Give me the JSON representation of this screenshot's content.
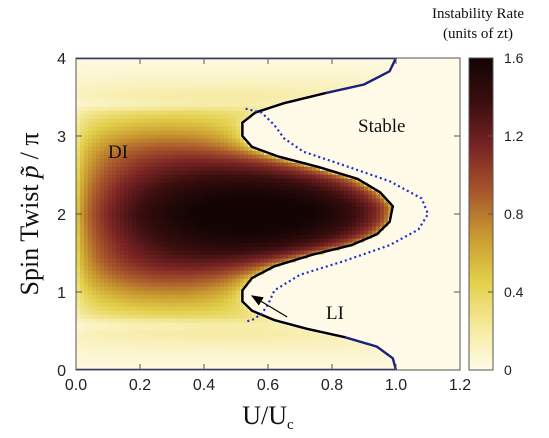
{
  "chart_data": {
    "type": "heatmap",
    "title": "",
    "xlabel": {
      "main": "U/U",
      "sub": "c"
    },
    "ylabel": {
      "main": "Spin Twist",
      "symbol": "p̃",
      "suffix": "/ π"
    },
    "xlim": [
      0.0,
      1.2
    ],
    "ylim": [
      0,
      4
    ],
    "xticks": [
      "0.0",
      "0.2",
      "0.4",
      "0.6",
      "0.8",
      "1.0",
      "1.2"
    ],
    "yticks": [
      "0",
      "1",
      "2",
      "3",
      "4"
    ],
    "colorbar": {
      "title_line1": "Instability Rate",
      "title_line2": "(units of zt)",
      "range": [
        0,
        1.6
      ],
      "ticks": [
        "0",
        "0.4",
        "0.8",
        "1.2",
        "1.6"
      ],
      "colors": [
        "#fffbe8",
        "#f5e99a",
        "#e2cf4a",
        "#c99a30",
        "#a8562c",
        "#7a2424",
        "#3a0e0e",
        "#140404"
      ]
    },
    "regions": {
      "di_label": "DI",
      "stable_label": "Stable",
      "li_label": "LI"
    },
    "boundaries": {
      "di_boundary_black": {
        "color": "#000000",
        "points": [
          [
            1.0,
            4.0
          ],
          [
            0.98,
            3.83
          ],
          [
            0.9,
            3.66
          ],
          [
            0.78,
            3.55
          ],
          [
            0.65,
            3.42
          ],
          [
            0.56,
            3.3
          ],
          [
            0.52,
            3.17
          ],
          [
            0.52,
            3.0
          ],
          [
            0.55,
            2.86
          ],
          [
            0.63,
            2.74
          ],
          [
            0.76,
            2.6
          ],
          [
            0.88,
            2.45
          ],
          [
            0.95,
            2.28
          ],
          [
            0.99,
            2.1
          ],
          [
            0.98,
            1.9
          ],
          [
            0.94,
            1.74
          ],
          [
            0.86,
            1.6
          ],
          [
            0.74,
            1.48
          ],
          [
            0.62,
            1.33
          ],
          [
            0.55,
            1.18
          ],
          [
            0.52,
            1.02
          ],
          [
            0.52,
            0.88
          ],
          [
            0.55,
            0.76
          ],
          [
            0.62,
            0.64
          ],
          [
            0.72,
            0.53
          ],
          [
            0.84,
            0.42
          ],
          [
            0.94,
            0.3
          ],
          [
            0.99,
            0.15
          ],
          [
            1.0,
            0.0
          ]
        ]
      },
      "li_boundary_blue": {
        "color": "#1a2fd0",
        "points": [
          [
            0.53,
            3.35
          ],
          [
            0.58,
            3.3
          ],
          [
            0.62,
            3.14
          ],
          [
            0.65,
            2.97
          ],
          [
            0.71,
            2.8
          ],
          [
            0.84,
            2.62
          ],
          [
            0.98,
            2.42
          ],
          [
            1.08,
            2.2
          ],
          [
            1.1,
            2.0
          ],
          [
            1.07,
            1.8
          ],
          [
            0.98,
            1.6
          ],
          [
            0.84,
            1.4
          ],
          [
            0.7,
            1.22
          ],
          [
            0.62,
            1.02
          ],
          [
            0.6,
            0.84
          ],
          [
            0.58,
            0.72
          ],
          [
            0.55,
            0.64
          ],
          [
            0.53,
            0.62
          ]
        ]
      },
      "outer_line_blue": {
        "color": "#1a2080",
        "points": [
          [
            0.0,
            4.0
          ],
          [
            1.0,
            4.0
          ],
          [
            0.98,
            3.83
          ],
          [
            0.9,
            3.66
          ],
          [
            0.78,
            3.55
          ],
          [
            0.65,
            3.42
          ],
          [
            0.56,
            3.3
          ],
          [
            0.52,
            3.17
          ],
          [
            0.52,
            3.0
          ],
          [
            0.55,
            2.86
          ],
          [
            0.63,
            2.74
          ],
          [
            0.76,
            2.6
          ],
          [
            0.88,
            2.45
          ],
          [
            0.95,
            2.28
          ],
          [
            0.99,
            2.1
          ],
          [
            0.98,
            1.9
          ],
          [
            0.94,
            1.74
          ],
          [
            0.86,
            1.6
          ],
          [
            0.74,
            1.48
          ],
          [
            0.62,
            1.33
          ],
          [
            0.55,
            1.18
          ],
          [
            0.52,
            1.02
          ],
          [
            0.52,
            0.88
          ],
          [
            0.55,
            0.76
          ],
          [
            0.62,
            0.64
          ],
          [
            0.72,
            0.53
          ],
          [
            0.84,
            0.42
          ],
          [
            0.94,
            0.3
          ],
          [
            0.99,
            0.15
          ],
          [
            1.0,
            0.0
          ],
          [
            0.0,
            0.0
          ]
        ]
      }
    },
    "annotation_arrow": {
      "from": [
        0.66,
        0.68
      ],
      "to": [
        0.55,
        0.95
      ]
    }
  }
}
